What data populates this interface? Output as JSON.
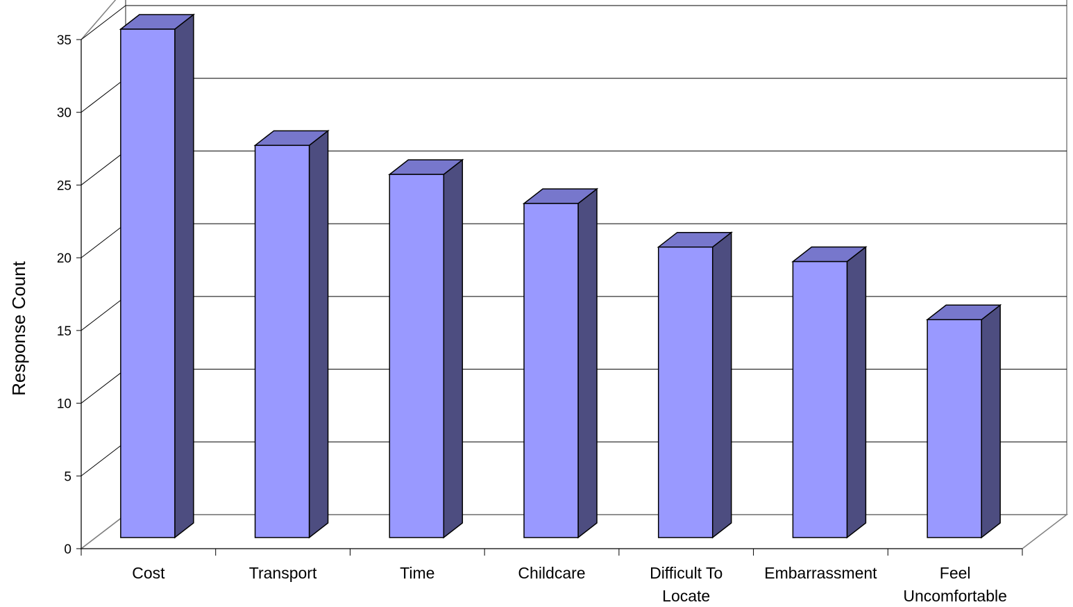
{
  "chart_data": {
    "type": "bar",
    "ylabel": "Response Count",
    "xlabel": "",
    "title": "",
    "ylim": [
      0,
      35
    ],
    "yticks": [
      0,
      5,
      10,
      15,
      20,
      25,
      30,
      35
    ],
    "grid": true,
    "three_d": true,
    "categories": [
      [
        "Cost"
      ],
      [
        "Transport"
      ],
      [
        "Time"
      ],
      [
        "Childcare"
      ],
      [
        "Difficult To",
        "Locate"
      ],
      [
        "Embarrassment"
      ],
      [
        "Feel",
        "Uncomfortable"
      ]
    ],
    "values": [
      35,
      27,
      25,
      23,
      20,
      19,
      15
    ],
    "colors": {
      "bar_front": "#9999ff",
      "bar_side": "#4d4d80",
      "bar_top": "#7777cc",
      "grid": "#000000",
      "wall": "#808080"
    }
  }
}
